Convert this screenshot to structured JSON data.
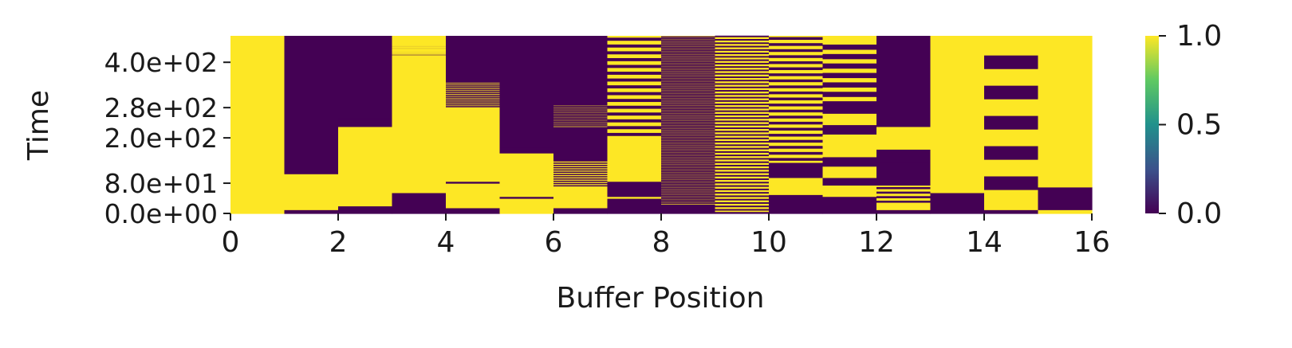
{
  "chart_data": {
    "type": "heatmap",
    "xlabel": "Buffer Position",
    "ylabel": "Time",
    "x_range": [
      0,
      16
    ],
    "x_ticks": [
      0,
      2,
      4,
      6,
      8,
      10,
      12,
      14,
      16
    ],
    "x_tick_labels": [
      "0",
      "2",
      "4",
      "6",
      "8",
      "10",
      "12",
      "14",
      "16"
    ],
    "y_range": [
      0,
      470
    ],
    "y_ticks": [
      0,
      80,
      200,
      280,
      400
    ],
    "y_tick_labels": [
      "0.0e+00",
      "8.0e+01",
      "2.0e+02",
      "2.8e+02",
      "4.0e+02"
    ],
    "colorbar": {
      "range": [
        0,
        1
      ],
      "ticks": [
        0,
        0.5,
        1
      ],
      "tick_labels": [
        "0.0",
        "0.5",
        "1.0"
      ],
      "colormap": "viridis"
    },
    "colors": {
      "low": "#440154",
      "high": "#fde725"
    },
    "columns": [
      {
        "position": 0,
        "segments": [
          [
            0,
            470,
            1
          ]
        ]
      },
      {
        "position": 1,
        "segments": [
          [
            0,
            10,
            0
          ],
          [
            10,
            105,
            1
          ],
          [
            105,
            470,
            0
          ]
        ]
      },
      {
        "position": 2,
        "segments": [
          [
            0,
            20,
            0
          ],
          [
            20,
            230,
            1
          ],
          [
            230,
            250,
            0
          ],
          [
            250,
            470,
            0
          ]
        ]
      },
      {
        "position": 3,
        "segments": [
          [
            0,
            55,
            0
          ],
          [
            55,
            420,
            1
          ],
          [
            420,
            445,
            0
          ],
          [
            445,
            470,
            1
          ]
        ]
      },
      {
        "position": 4,
        "segments": [
          [
            0,
            15,
            0
          ],
          [
            15,
            80,
            1
          ],
          [
            80,
            85,
            0
          ],
          [
            85,
            280,
            1
          ],
          [
            280,
            350,
            1
          ],
          [
            350,
            470,
            0
          ]
        ]
      },
      {
        "position": 5,
        "segments": [
          [
            0,
            40,
            1
          ],
          [
            40,
            45,
            0
          ],
          [
            45,
            160,
            1
          ],
          [
            160,
            175,
            0
          ],
          [
            175,
            470,
            0
          ]
        ]
      },
      {
        "position": 6,
        "segments": [
          [
            0,
            15,
            0
          ],
          [
            15,
            70,
            1
          ],
          [
            70,
            140,
            1
          ],
          [
            140,
            230,
            0
          ],
          [
            230,
            290,
            1
          ],
          [
            290,
            470,
            0
          ]
        ]
      },
      {
        "position": 7,
        "segments": [
          [
            0,
            40,
            0
          ],
          [
            40,
            45,
            1
          ],
          [
            45,
            85,
            0
          ],
          [
            85,
            200,
            1
          ],
          [
            200,
            470,
            1
          ]
        ]
      },
      {
        "position": 8,
        "segments": [
          [
            0,
            25,
            0
          ],
          [
            25,
            470,
            1
          ]
        ]
      },
      {
        "position": 9,
        "segments": [
          [
            0,
            5,
            0
          ],
          [
            5,
            470,
            1
          ]
        ]
      },
      {
        "position": 10,
        "segments": [
          [
            0,
            50,
            0
          ],
          [
            50,
            95,
            1
          ],
          [
            95,
            135,
            0
          ],
          [
            135,
            470,
            1
          ]
        ]
      },
      {
        "position": 11,
        "segments": [
          [
            0,
            45,
            0
          ],
          [
            45,
            75,
            1
          ],
          [
            75,
            95,
            0
          ],
          [
            95,
            125,
            1
          ],
          [
            125,
            150,
            0
          ],
          [
            150,
            210,
            1
          ],
          [
            210,
            235,
            0
          ],
          [
            235,
            265,
            1
          ],
          [
            265,
            290,
            0
          ],
          [
            290,
            455,
            0
          ],
          [
            455,
            470,
            1
          ]
        ]
      },
      {
        "position": 12,
        "segments": [
          [
            0,
            10,
            0
          ],
          [
            10,
            25,
            1
          ],
          [
            25,
            75,
            1
          ],
          [
            75,
            135,
            0
          ],
          [
            135,
            170,
            0
          ],
          [
            170,
            230,
            1
          ],
          [
            230,
            470,
            0
          ]
        ]
      },
      {
        "position": 13,
        "segments": [
          [
            0,
            55,
            0
          ],
          [
            55,
            470,
            1
          ]
        ]
      },
      {
        "position": 14,
        "segments": [
          [
            0,
            10,
            0
          ],
          [
            10,
            40,
            1
          ],
          [
            40,
            470,
            1
          ]
        ]
      },
      {
        "position": 15,
        "segments": [
          [
            0,
            10,
            1
          ],
          [
            10,
            70,
            0
          ],
          [
            70,
            470,
            1
          ]
        ]
      }
    ]
  }
}
